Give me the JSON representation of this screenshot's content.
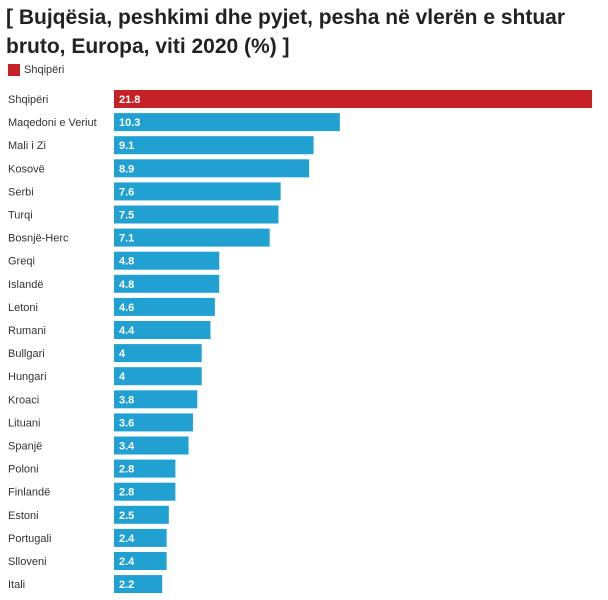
{
  "chart_data": {
    "type": "bar",
    "orientation": "horizontal",
    "title": "[ Bujqësia, peshkimi dhe pyjet, pesha në vlerën e shtuar bruto, Europa, viti 2020 (%) ]",
    "legend": {
      "label": "Shqipëri",
      "color": "#c62127",
      "placement": "top-left"
    },
    "highlight_color": "#c62127",
    "bar_color": "#21a0d2",
    "grid": false,
    "xlim": [
      0,
      21.8
    ],
    "categories": [
      "Shqipëri",
      "Maqedoni e Veriut",
      "Mali i Zi",
      "Kosovë",
      "Serbi",
      "Turqi",
      "Bosnjë-Herc",
      "Greqi",
      "Islandë",
      "Letoni",
      "Rumani",
      "Bullgari",
      "Hungari",
      "Kroaci",
      "Lituani",
      "Spanjë",
      "Poloni",
      "Finlandë",
      "Estoni",
      "Portugali",
      "Slloveni",
      "Itali"
    ],
    "values": [
      21.8,
      10.3,
      9.1,
      8.9,
      7.6,
      7.5,
      7.1,
      4.8,
      4.8,
      4.6,
      4.4,
      4,
      4,
      3.8,
      3.6,
      3.4,
      2.8,
      2.8,
      2.5,
      2.4,
      2.4,
      2.2
    ],
    "value_labels": [
      "21.8",
      "10.3",
      "9.1",
      "8.9",
      "7.6",
      "7.5",
      "7.1",
      "4.8",
      "4.8",
      "4.6",
      "4.4",
      "4",
      "4",
      "3.8",
      "3.6",
      "3.4",
      "2.8",
      "2.8",
      "2.5",
      "2.4",
      "2.4",
      "2.2"
    ],
    "highlight_index": 0
  }
}
